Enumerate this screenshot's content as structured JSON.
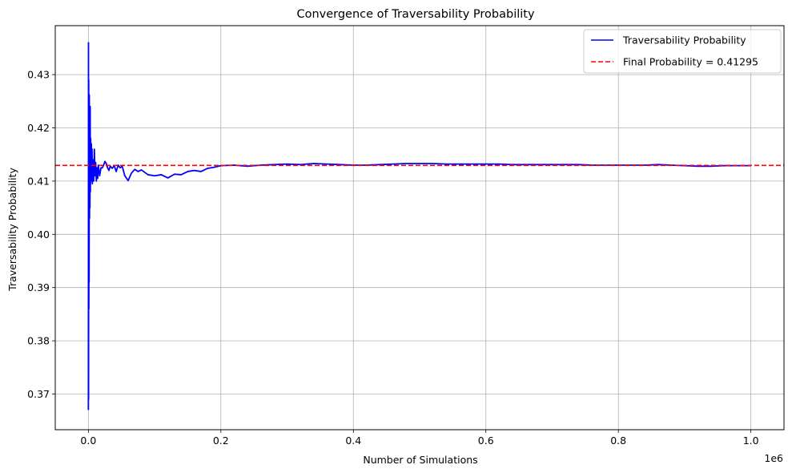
{
  "chart_data": {
    "type": "line",
    "title": "Convergence of Traversability Probability",
    "xlabel": "Number of Simulations",
    "ylabel": "Traversability Probability",
    "x_offset_label": "1e6",
    "xlim": [
      -50000,
      1050000
    ],
    "ylim": [
      0.3633,
      0.4392
    ],
    "x_ticks": [
      0,
      200000,
      400000,
      600000,
      800000,
      1000000
    ],
    "x_tick_labels": [
      "0.0",
      "0.2",
      "0.4",
      "0.6",
      "0.8",
      "1.0"
    ],
    "y_ticks": [
      0.37,
      0.38,
      0.39,
      0.4,
      0.41,
      0.42,
      0.43
    ],
    "y_tick_labels": [
      "0.37",
      "0.38",
      "0.39",
      "0.40",
      "0.41",
      "0.42",
      "0.43"
    ],
    "grid": true,
    "legend_position": "top-right",
    "series": [
      {
        "name": "Traversability Probability",
        "color": "#0000ff",
        "style": "solid",
        "x": [
          0,
          150,
          300,
          500,
          700,
          900,
          1100,
          1400,
          1700,
          2000,
          2300,
          2700,
          3000,
          3500,
          4000,
          4500,
          5000,
          5500,
          6000,
          7000,
          8000,
          9000,
          10000,
          11000,
          12000,
          13000,
          14000,
          15000,
          17000,
          19000,
          21000,
          23000,
          25000,
          27000,
          29000,
          31000,
          33000,
          36000,
          39000,
          42000,
          45000,
          48000,
          51000,
          55000,
          60000,
          65000,
          70000,
          75000,
          80000,
          90000,
          100000,
          110000,
          120000,
          130000,
          140000,
          150000,
          160000,
          170000,
          180000,
          190000,
          200000,
          220000,
          240000,
          260000,
          280000,
          300000,
          320000,
          340000,
          360000,
          380000,
          400000,
          420000,
          440000,
          460000,
          480000,
          500000,
          520000,
          540000,
          560000,
          580000,
          600000,
          620000,
          640000,
          660000,
          680000,
          700000,
          720000,
          740000,
          760000,
          780000,
          800000,
          820000,
          840000,
          860000,
          880000,
          900000,
          920000,
          940000,
          960000,
          980000,
          1000000
        ],
        "y": [
          0.367,
          0.436,
          0.369,
          0.429,
          0.386,
          0.425,
          0.391,
          0.4262,
          0.403,
          0.421,
          0.405,
          0.424,
          0.408,
          0.418,
          0.41,
          0.417,
          0.412,
          0.416,
          0.4095,
          0.414,
          0.41,
          0.416,
          0.411,
          0.4135,
          0.41,
          0.4125,
          0.4105,
          0.413,
          0.411,
          0.4125,
          0.4125,
          0.413,
          0.4137,
          0.4133,
          0.4125,
          0.412,
          0.4128,
          0.4124,
          0.4129,
          0.4118,
          0.413,
          0.4125,
          0.4128,
          0.411,
          0.4101,
          0.4115,
          0.4122,
          0.4118,
          0.4121,
          0.4112,
          0.411,
          0.4112,
          0.4106,
          0.4113,
          0.4112,
          0.4118,
          0.412,
          0.4118,
          0.4124,
          0.4126,
          0.4129,
          0.413,
          0.4128,
          0.413,
          0.4131,
          0.4132,
          0.4131,
          0.4133,
          0.4132,
          0.4131,
          0.413,
          0.413,
          0.4131,
          0.4132,
          0.4133,
          0.4133,
          0.4133,
          0.4132,
          0.4132,
          0.4132,
          0.4132,
          0.4132,
          0.4131,
          0.4131,
          0.4131,
          0.4131,
          0.4131,
          0.4131,
          0.413,
          0.413,
          0.413,
          0.413,
          0.413,
          0.4131,
          0.413,
          0.4129,
          0.4128,
          0.4128,
          0.4129,
          0.4129,
          0.4129
        ]
      },
      {
        "name": "Final Probability = 0.41295",
        "color": "#ff0000",
        "style": "dashed",
        "y_constant": 0.41295
      }
    ]
  }
}
